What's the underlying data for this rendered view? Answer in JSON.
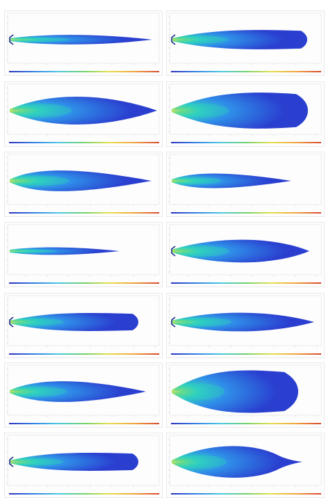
{
  "figure": {
    "columns": 2,
    "rows": 7,
    "colorbar_colors": [
      "#2b2fbf",
      "#2f7fe6",
      "#47c9e0",
      "#6fd16a",
      "#e6e04a",
      "#f2a23a",
      "#d9452c"
    ],
    "plume_colors": {
      "outer": "#2a3fd0",
      "mid": "#2f8fe8",
      "inner": "#2fd0c0",
      "core": "#8be06a",
      "hot": "#f0e060"
    },
    "panels": [
      {
        "shape": "slender-long",
        "has_nozzle": true
      },
      {
        "shape": "slender-blunt",
        "has_nozzle": true
      },
      {
        "shape": "wide-pointed",
        "has_nozzle": false
      },
      {
        "shape": "wide-rounded",
        "has_nozzle": false
      },
      {
        "shape": "tapered",
        "has_nozzle": false
      },
      {
        "shape": "tapered-short",
        "has_nozzle": false
      },
      {
        "shape": "thin-short",
        "has_nozzle": false
      },
      {
        "shape": "swollen-pointed",
        "has_nozzle": true
      },
      {
        "shape": "medium-rounded",
        "has_nozzle": true
      },
      {
        "shape": "medium-pointed",
        "has_nozzle": true
      },
      {
        "shape": "tapered-bulge",
        "has_nozzle": false
      },
      {
        "shape": "broad-rounded",
        "has_nozzle": false
      },
      {
        "shape": "medium-rounded",
        "has_nozzle": true
      },
      {
        "shape": "bulb-tail",
        "has_nozzle": false
      }
    ]
  }
}
